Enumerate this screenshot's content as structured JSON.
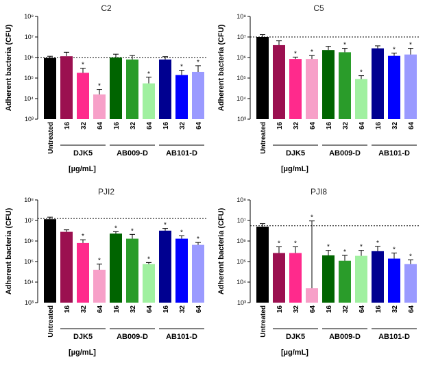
{
  "figure": {
    "x_unit_label": "[µg/mL]"
  },
  "chart_data": [
    {
      "type": "bar",
      "title": "C2",
      "ylabel": "Adherent bacteria (CFU)",
      "yscale": "log",
      "ylim": [
        1000,
        100000000
      ],
      "ytick_labels": [
        "10³",
        "10⁴",
        "10⁵",
        "10⁶",
        "10⁷",
        "10⁸"
      ],
      "categories": [
        "Untreated",
        "16",
        "32",
        "64",
        "16",
        "32",
        "64",
        "16",
        "32",
        "64"
      ],
      "groups": [
        {
          "label": "DJK5",
          "indices": [
            1,
            2,
            3
          ]
        },
        {
          "label": "AB009-D",
          "indices": [
            4,
            5,
            6
          ]
        },
        {
          "label": "AB101-D",
          "indices": [
            7,
            8,
            9
          ]
        }
      ],
      "values": [
        950000,
        1150000,
        180000,
        16000,
        1000000,
        800000,
        55000,
        800000,
        140000,
        200000
      ],
      "error_upper": [
        1150000,
        1800000,
        300000,
        28000,
        1450000,
        1250000,
        110000,
        1100000,
        240000,
        400000
      ],
      "significant": [
        false,
        false,
        true,
        true,
        false,
        false,
        true,
        false,
        true,
        true
      ],
      "reference_line": 1000000,
      "colors": [
        "#000000",
        "#9b1050",
        "#ff2a8c",
        "#f7a0c8",
        "#006400",
        "#2a9c2a",
        "#a0f0a0",
        "#000090",
        "#0000ff",
        "#9a9aff"
      ]
    },
    {
      "type": "bar",
      "title": "C5",
      "ylabel": "Adherent bacteria (CFU)",
      "yscale": "log",
      "ylim": [
        1000,
        100000000
      ],
      "ytick_labels": [
        "10³",
        "10⁴",
        "10⁵",
        "10⁶",
        "10⁷",
        "10⁸"
      ],
      "categories": [
        "Untreated",
        "16",
        "32",
        "64",
        "16",
        "32",
        "64",
        "16",
        "32",
        "64"
      ],
      "groups": [
        {
          "label": "DJK5",
          "indices": [
            1,
            2,
            3
          ]
        },
        {
          "label": "AB009-D",
          "indices": [
            4,
            5,
            6
          ]
        },
        {
          "label": "AB101-D",
          "indices": [
            7,
            8,
            9
          ]
        }
      ],
      "values": [
        10000000,
        4000000,
        850000,
        850000,
        2300000,
        1800000,
        90000,
        2800000,
        1200000,
        1400000
      ],
      "error_upper": [
        13000000,
        6500000,
        1050000,
        1250000,
        3500000,
        2800000,
        130000,
        3700000,
        1650000,
        2800000
      ],
      "significant": [
        false,
        false,
        true,
        true,
        false,
        true,
        true,
        false,
        true,
        true
      ],
      "reference_line": 10000000,
      "colors": [
        "#000000",
        "#9b1050",
        "#ff2a8c",
        "#f7a0c8",
        "#006400",
        "#2a9c2a",
        "#a0f0a0",
        "#000090",
        "#0000ff",
        "#9a9aff"
      ]
    },
    {
      "type": "bar",
      "title": "PJI2",
      "ylabel": "Adherent bacteria (CFU)",
      "yscale": "log",
      "ylim": [
        1000,
        100000000
      ],
      "ytick_labels": [
        "10³",
        "10⁴",
        "10⁵",
        "10⁶",
        "10⁷",
        "10⁸"
      ],
      "categories": [
        "Untreated",
        "16",
        "32",
        "64",
        "16",
        "32",
        "64",
        "16",
        "32",
        "64"
      ],
      "groups": [
        {
          "label": "DJK5",
          "indices": [
            1,
            2,
            3
          ]
        },
        {
          "label": "AB009-D",
          "indices": [
            4,
            5,
            6
          ]
        },
        {
          "label": "AB101-D",
          "indices": [
            7,
            8,
            9
          ]
        }
      ],
      "values": [
        11500000,
        2800000,
        800000,
        40000,
        2300000,
        1300000,
        75000,
        3200000,
        1300000,
        650000
      ],
      "error_upper": [
        14500000,
        3500000,
        1150000,
        75000,
        2850000,
        2100000,
        90000,
        4100000,
        1800000,
        850000
      ],
      "significant": [
        false,
        false,
        true,
        true,
        true,
        true,
        true,
        true,
        true,
        true
      ],
      "reference_line": 12500000,
      "colors": [
        "#000000",
        "#9b1050",
        "#ff2a8c",
        "#f7a0c8",
        "#006400",
        "#2a9c2a",
        "#a0f0a0",
        "#000090",
        "#0000ff",
        "#9a9aff"
      ]
    },
    {
      "type": "bar",
      "title": "PJI8",
      "ylabel": "Adherent bacteria (CFU)",
      "yscale": "log",
      "ylim": [
        1000,
        100000000
      ],
      "ytick_labels": [
        "10³",
        "10⁴",
        "10⁵",
        "10⁶",
        "10⁷",
        "10⁸"
      ],
      "categories": [
        "Untreated",
        "16",
        "32",
        "64",
        "16",
        "32",
        "64",
        "16",
        "32",
        "64"
      ],
      "groups": [
        {
          "label": "DJK5",
          "indices": [
            1,
            2,
            3
          ]
        },
        {
          "label": "AB009-D",
          "indices": [
            4,
            5,
            6
          ]
        },
        {
          "label": "AB101-D",
          "indices": [
            7,
            8,
            9
          ]
        }
      ],
      "values": [
        5000000,
        260000,
        260000,
        5000,
        200000,
        110000,
        190000,
        320000,
        140000,
        75000
      ],
      "error_upper": [
        7000000,
        520000,
        520000,
        9500000,
        350000,
        200000,
        350000,
        550000,
        260000,
        120000
      ],
      "significant": [
        false,
        true,
        true,
        true,
        true,
        true,
        true,
        true,
        true,
        true
      ],
      "reference_line": 5500000,
      "colors": [
        "#000000",
        "#9b1050",
        "#ff2a8c",
        "#f7a0c8",
        "#006400",
        "#2a9c2a",
        "#a0f0a0",
        "#000090",
        "#0000ff",
        "#9a9aff"
      ]
    }
  ]
}
